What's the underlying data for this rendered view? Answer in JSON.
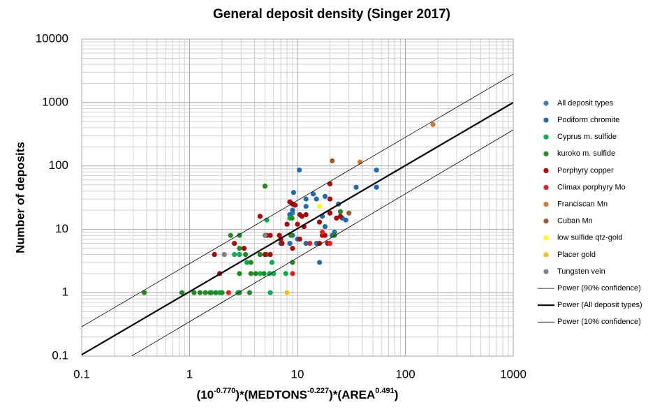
{
  "chart_data": {
    "type": "scatter",
    "title": "General deposit density (Singer 2017)",
    "y_label": "Number of deposits",
    "x_label_parts": [
      "(10",
      "-0.770",
      ")*(MEDTONS",
      "-0.227",
      ")*(AREA",
      "0.491",
      ")"
    ],
    "xlog": true,
    "ylog": true,
    "grid": true,
    "minor_grid": true,
    "legend": "right",
    "xlim": [
      0.1,
      1000
    ],
    "ylim": [
      0.1,
      10000
    ],
    "xticks": [
      0.1,
      1,
      10,
      100,
      1000
    ],
    "yticks": [
      0.1,
      1,
      10,
      100,
      1000,
      10000
    ],
    "series": [
      {
        "name": "All deposit types",
        "mode": "marker",
        "color": "#2f80c8",
        "x": [
          6,
          9
        ],
        "values": [
          2,
          18
        ]
      },
      {
        "name": "Podiform chromite",
        "mode": "marker",
        "color": "#1e6bb0",
        "x": [
          10.4,
          54,
          54,
          35,
          9.2,
          14,
          18,
          12,
          15,
          24,
          9,
          12,
          20,
          8.5,
          17,
          26,
          28,
          22,
          18,
          21,
          9,
          13,
          15,
          10,
          16,
          12,
          8.5,
          7
        ],
        "values": [
          86,
          86,
          46,
          46,
          38,
          36,
          33,
          30,
          30,
          25,
          20,
          23,
          18,
          17,
          16,
          15,
          14,
          9,
          11,
          8,
          8,
          6,
          6,
          7,
          3,
          6,
          6,
          6
        ]
      },
      {
        "name": "Cyprus m. sulfide",
        "mode": "marker",
        "color": "#00b050",
        "x": [
          5.2,
          8.5,
          2.6,
          2.9,
          3.4,
          5.2,
          5.8,
          4.5,
          5.5,
          6,
          5.6,
          2.8,
          1.6,
          1.9,
          7.8
        ],
        "values": [
          14,
          15,
          4,
          4,
          3,
          4,
          3,
          2,
          2,
          2,
          1,
          1,
          1,
          1,
          2
        ]
      },
      {
        "name": "kuroko m. sulfide",
        "mode": "marker",
        "color": "#1e8c1e",
        "x": [
          0.38,
          0.85,
          1.1,
          1.25,
          1.4,
          1.55,
          1.75,
          2.0,
          2.9,
          3.6,
          2.4,
          2.9,
          2.9,
          3.3,
          3.7,
          4.1,
          4.9,
          3.7,
          2.9,
          5.0,
          8.9,
          8.7,
          9.0,
          25,
          22,
          4.5
        ],
        "values": [
          1,
          1,
          1,
          1,
          1,
          1,
          1,
          1,
          1,
          1,
          8,
          8,
          5,
          4,
          3,
          2,
          2,
          2,
          2,
          48,
          15,
          8,
          3,
          19,
          8,
          4
        ]
      },
      {
        "name": "Porphyry copper",
        "mode": "marker",
        "color": "#b00000",
        "x": [
          1.7,
          1.9,
          2.6,
          3.2,
          4.5,
          5.2,
          5.6,
          6.8,
          7.2,
          8,
          8.5,
          9,
          9.5,
          10.5,
          11,
          11.5,
          12,
          10,
          10.5,
          16,
          17,
          18,
          20,
          20,
          20,
          23,
          25,
          9,
          7,
          5,
          5.6,
          16,
          19
        ],
        "values": [
          4,
          2,
          6,
          5,
          16,
          8,
          8,
          8,
          6,
          12,
          27,
          25,
          24,
          17,
          16,
          11,
          17,
          12,
          7,
          13,
          8,
          8,
          18,
          30,
          52,
          15,
          16,
          5,
          7,
          4,
          4,
          6,
          6
        ]
      },
      {
        "name": "Climax porphyry Mo",
        "mode": "marker",
        "color": "#ee1c1c",
        "x": [
          2.3,
          9,
          13,
          20,
          17
        ],
        "values": [
          1,
          2,
          6,
          6,
          9
        ]
      },
      {
        "name": "Franciscan Mn",
        "mode": "marker",
        "color": "#d2792a",
        "x": [
          180,
          38
        ],
        "values": [
          450,
          115
        ]
      },
      {
        "name": "Cuban Mn",
        "mode": "marker",
        "color": "#9c5a2a",
        "x": [
          21,
          30
        ],
        "values": [
          120,
          18
        ]
      },
      {
        "name": "low sulfide qtz-gold",
        "mode": "marker",
        "color": "#ffff00",
        "x": [
          16
        ],
        "values": [
          23
        ]
      },
      {
        "name": "Placer gold",
        "mode": "marker",
        "color": "#ffc000",
        "x": [
          8
        ],
        "values": [
          1
        ]
      },
      {
        "name": "Tungsten vein",
        "mode": "marker",
        "color": "#808080",
        "x": [
          2.1,
          5
        ],
        "values": [
          4,
          8
        ]
      },
      {
        "name": "Power (90% confidence)",
        "mode": "line",
        "color": "#000000",
        "line_width": 0.8,
        "x": [
          0.1,
          1000
        ],
        "values": [
          0.29,
          2800
        ]
      },
      {
        "name": "Power (All deposit types)",
        "mode": "line",
        "color": "#000000",
        "line_width": 2.2,
        "x": [
          0.1,
          1000
        ],
        "values": [
          0.105,
          1000
        ]
      },
      {
        "name": "Power (10% confidence)",
        "mode": "line",
        "color": "#000000",
        "line_width": 0.8,
        "x": [
          0.29,
          1000
        ],
        "values": [
          0.1,
          370
        ]
      }
    ]
  }
}
